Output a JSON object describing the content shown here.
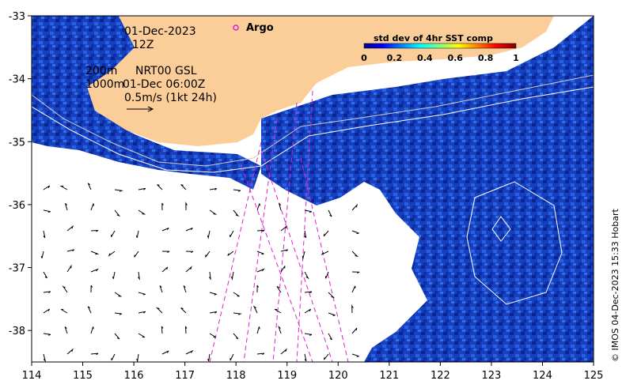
{
  "map": {
    "lon_ticks": [
      "114",
      "115",
      "116",
      "117",
      "118",
      "119",
      "120",
      "121",
      "122",
      "123",
      "124",
      "125"
    ],
    "lat_ticks": [
      "-33",
      "-34",
      "-35",
      "-36",
      "-37",
      "-38"
    ],
    "lon_range": [
      114,
      125
    ],
    "lat_range": [
      -38.5,
      -33
    ]
  },
  "annotations": {
    "date": "01-Dec-2023",
    "time": "12Z",
    "contour_200": "200m",
    "contour_1000": "1000m",
    "product": "NRT00 GSL",
    "product_time": "01-Dec 06:00Z",
    "scale": "0.5m/s (1kt 24h)",
    "argo": "Argo"
  },
  "colorbar": {
    "title": "std dev of 4hr SST comp",
    "ticks": [
      "0",
      "0.2",
      "0.4",
      "0.6",
      "0.8",
      "1"
    ],
    "range": [
      0,
      1
    ]
  },
  "credit": "© IMOS 04-Dec-2023 15:33 Hobart",
  "colors": {
    "land": "#fbcd98",
    "sea_dark": "#0a1f8a",
    "sea_mid": "#1f4ed0",
    "argo": "#e020d0"
  }
}
